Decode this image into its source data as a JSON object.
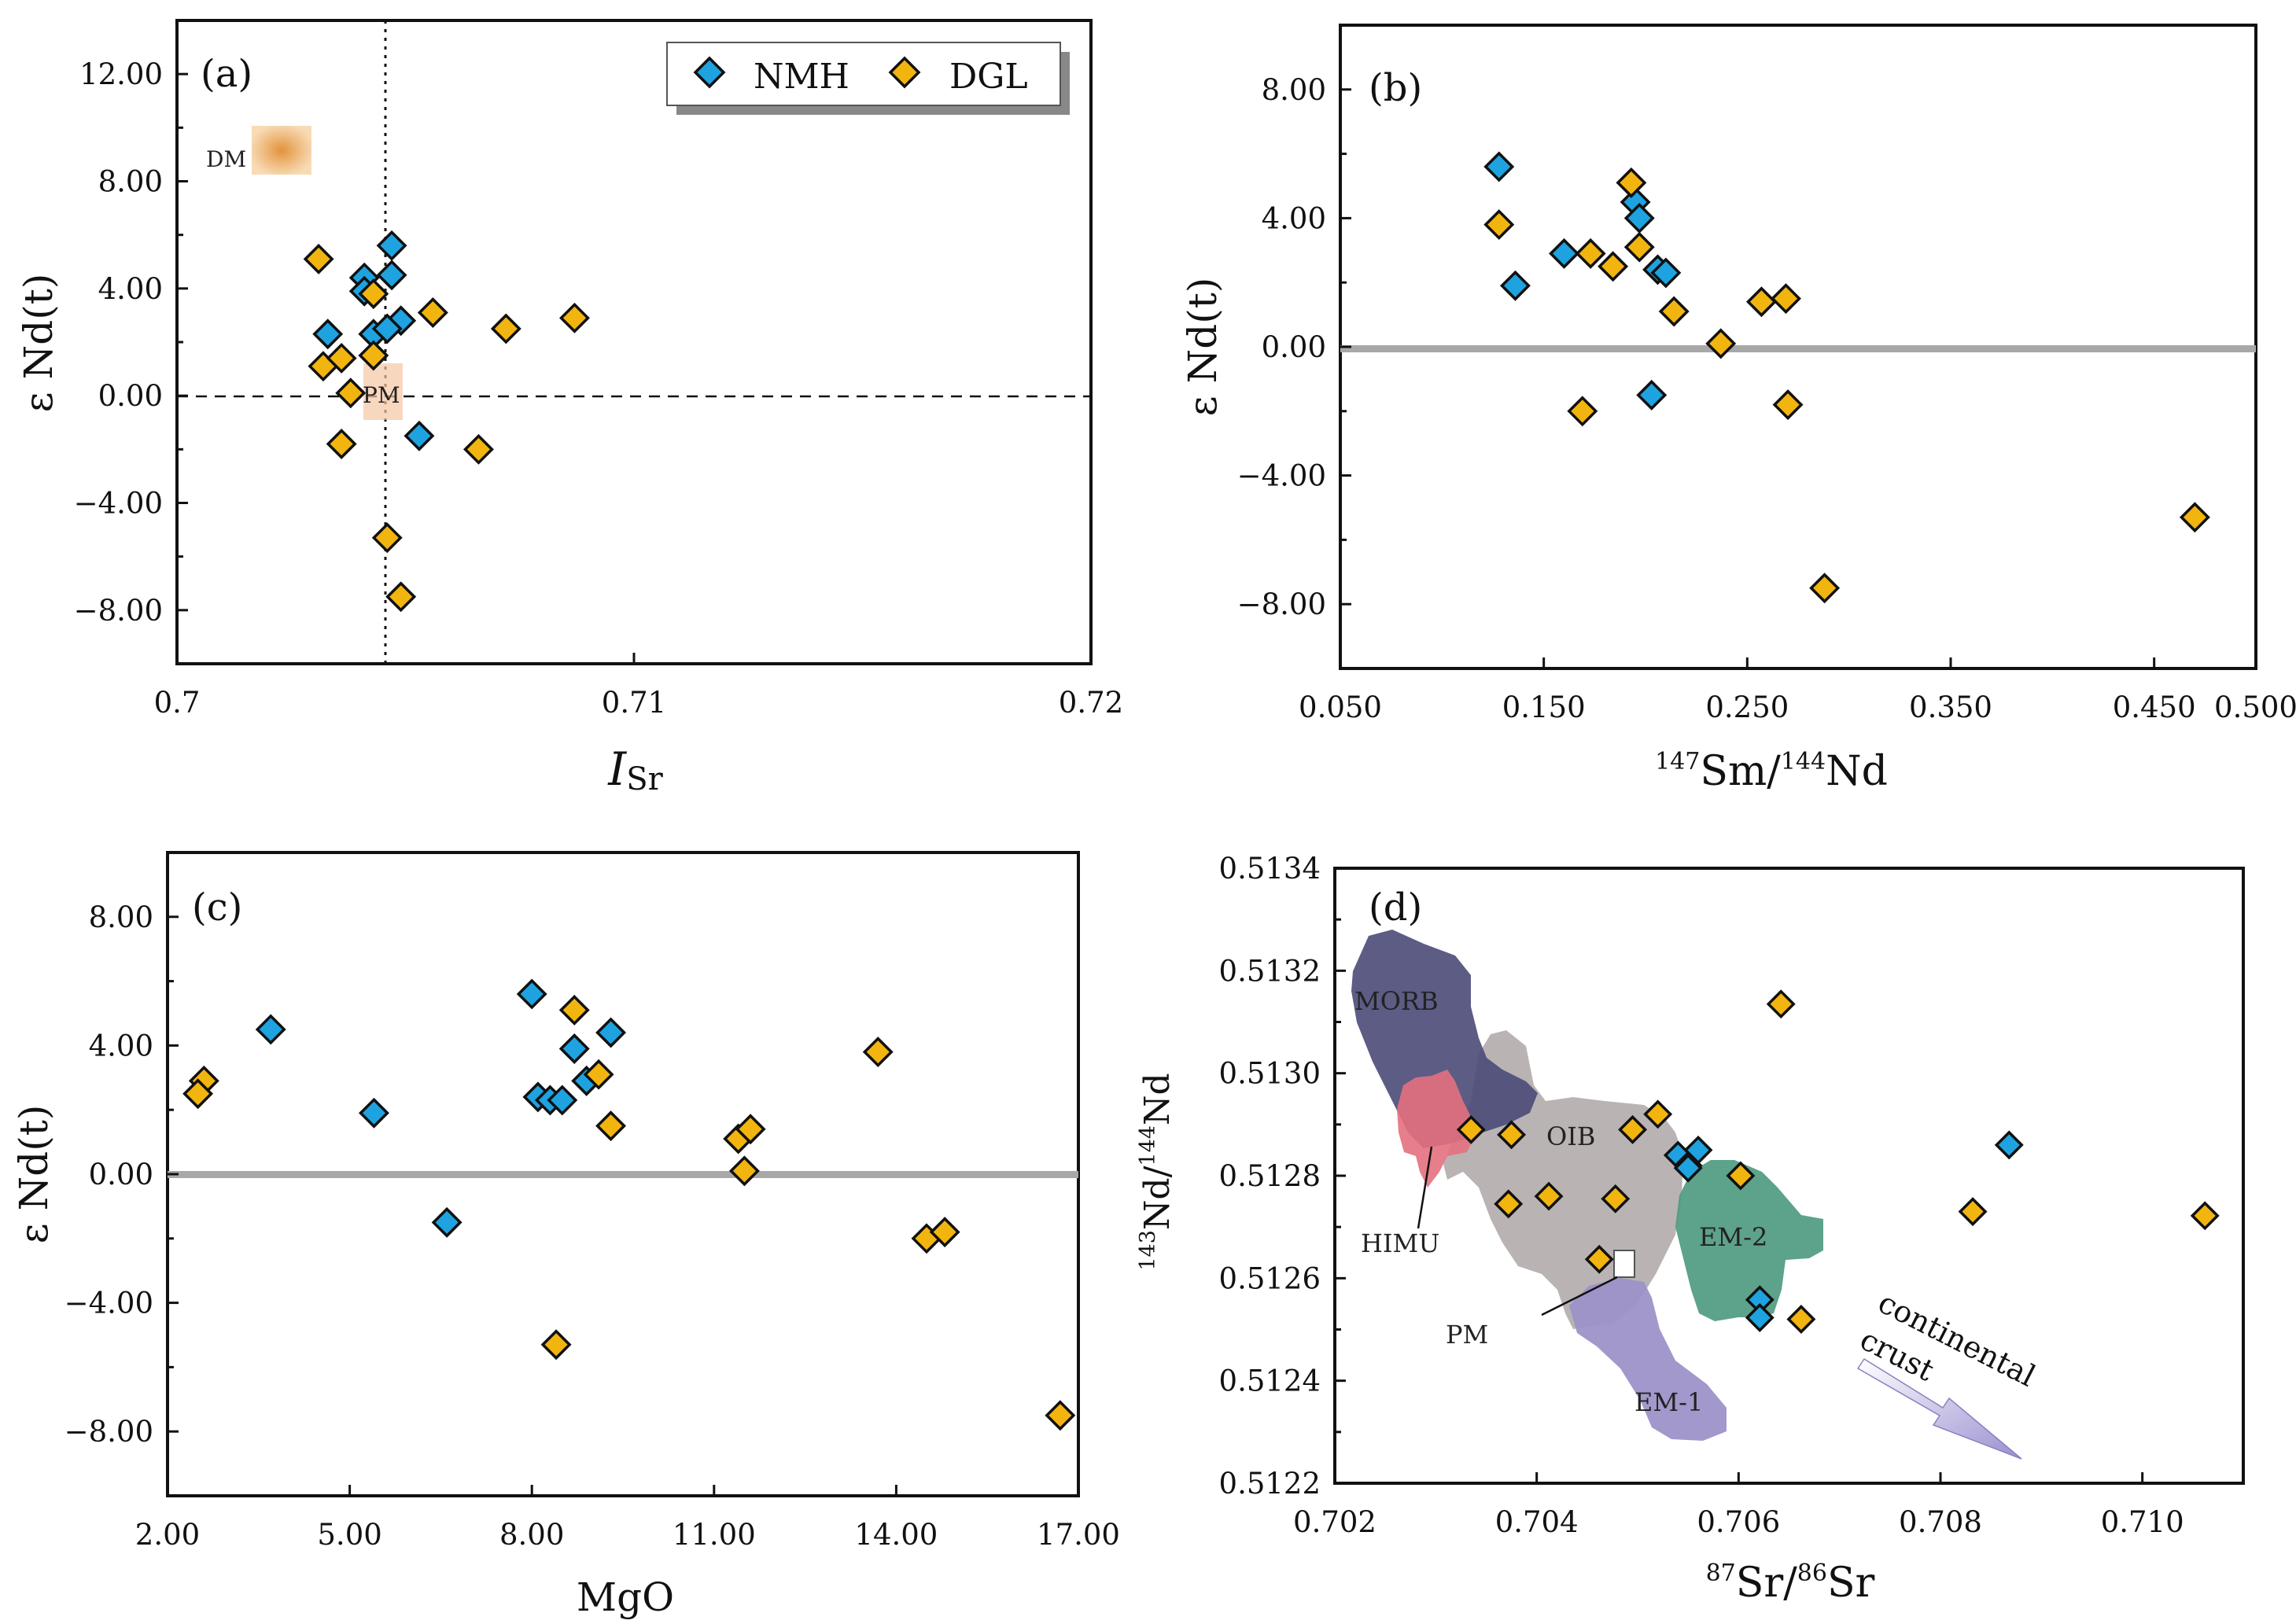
{
  "colors": {
    "NMH": "#1ea2e0",
    "DGL": "#f2b40f",
    "axis": "#111111",
    "zero_line": "#a8a8a8"
  },
  "legend": {
    "items": [
      {
        "name": "NMH",
        "color": "#1ea2e0"
      },
      {
        "name": "DGL",
        "color": "#f2b40f"
      }
    ]
  },
  "chart_data": [
    {
      "id": "a",
      "type": "scatter",
      "panel_label": "(a)",
      "xlabel_main": "I",
      "xlabel_sub": "Sr",
      "ylabel": "ε Nd(t)",
      "xlim": [
        0.7,
        0.72
      ],
      "ylim": [
        -10,
        14
      ],
      "x_ticks": [
        0.7,
        0.71,
        0.72
      ],
      "x_tick_labels": [
        "0.7",
        "0.71",
        "0.72"
      ],
      "y_ticks": [
        -8,
        -4,
        0,
        4,
        8,
        12
      ],
      "y_tick_labels": [
        "−8.00",
        "−4.00",
        "0.00",
        "4.00",
        "8.00",
        "12.00"
      ],
      "reference_lines": {
        "vertical_x": 0.7045,
        "horizontal_y": 0
      },
      "annotations": [
        {
          "label": "DM",
          "x": 0.7023,
          "y": 9.2
        },
        {
          "label": "PM",
          "x": 0.7045,
          "y": 0
        }
      ],
      "series": [
        {
          "name": "NMH",
          "points": [
            [
              0.7033,
              2.3
            ],
            [
              0.7041,
              4.4
            ],
            [
              0.7041,
              3.9
            ],
            [
              0.7047,
              5.6
            ],
            [
              0.7047,
              4.5
            ],
            [
              0.7043,
              2.3
            ],
            [
              0.7049,
              2.8
            ],
            [
              0.7046,
              2.5
            ],
            [
              0.7053,
              -1.5
            ]
          ]
        },
        {
          "name": "DGL",
          "points": [
            [
              0.7031,
              5.1
            ],
            [
              0.7043,
              3.8
            ],
            [
              0.7056,
              3.1
            ],
            [
              0.7072,
              2.5
            ],
            [
              0.7087,
              2.9
            ],
            [
              0.7032,
              1.1
            ],
            [
              0.7036,
              1.4
            ],
            [
              0.7043,
              1.5
            ],
            [
              0.7038,
              0.1
            ],
            [
              0.7036,
              -1.8
            ],
            [
              0.7066,
              -2.0
            ],
            [
              0.7046,
              -5.3
            ],
            [
              0.7049,
              -7.5
            ]
          ]
        }
      ]
    },
    {
      "id": "b",
      "type": "scatter",
      "panel_label": "(b)",
      "xlabel": "147Sm/144Nd",
      "ylabel": "ε Nd(t)",
      "xlim": [
        0.05,
        0.5
      ],
      "ylim": [
        -10,
        10
      ],
      "x_ticks": [
        0.05,
        0.15,
        0.25,
        0.35,
        0.45,
        0.5
      ],
      "x_tick_labels": [
        "0.050",
        "0.150",
        "0.250",
        "0.350",
        "0.450",
        "0.500"
      ],
      "y_ticks": [
        -8,
        -4,
        0,
        4,
        8
      ],
      "y_tick_labels": [
        "−8.00",
        "−4.00",
        "0.00",
        "4.00",
        "8.00"
      ],
      "zero_line": 0,
      "series": [
        {
          "name": "NMH",
          "points": [
            [
              0.128,
              5.6
            ],
            [
              0.195,
              4.5
            ],
            [
              0.197,
              4.0
            ],
            [
              0.16,
              2.9
            ],
            [
              0.136,
              1.9
            ],
            [
              0.206,
              2.4
            ],
            [
              0.21,
              2.3
            ],
            [
              0.203,
              -1.5
            ]
          ]
        },
        {
          "name": "DGL",
          "points": [
            [
              0.193,
              5.1
            ],
            [
              0.128,
              3.8
            ],
            [
              0.197,
              3.1
            ],
            [
              0.173,
              2.9
            ],
            [
              0.184,
              2.5
            ],
            [
              0.214,
              1.1
            ],
            [
              0.257,
              1.4
            ],
            [
              0.269,
              1.5
            ],
            [
              0.237,
              0.1
            ],
            [
              0.169,
              -2.0
            ],
            [
              0.27,
              -1.8
            ],
            [
              0.288,
              -7.5
            ],
            [
              0.47,
              -5.3
            ]
          ]
        }
      ]
    },
    {
      "id": "c",
      "type": "scatter",
      "panel_label": "(c)",
      "xlabel": "MgO",
      "ylabel": "ε Nd(t)",
      "xlim": [
        2,
        17
      ],
      "ylim": [
        -10,
        10
      ],
      "x_ticks": [
        2,
        5,
        8,
        11,
        14,
        17
      ],
      "x_tick_labels": [
        "2.00",
        "5.00",
        "8.00",
        "11.00",
        "14.00",
        "17.00"
      ],
      "y_ticks": [
        -8,
        -4,
        0,
        4,
        8
      ],
      "y_tick_labels": [
        "−8.00",
        "−4.00",
        "0.00",
        "4.00",
        "8.00"
      ],
      "zero_line": 0,
      "series": [
        {
          "name": "NMH",
          "points": [
            [
              8.0,
              5.6
            ],
            [
              3.7,
              4.5
            ],
            [
              9.3,
              4.4
            ],
            [
              8.7,
              3.9
            ],
            [
              8.9,
              2.9
            ],
            [
              8.1,
              2.4
            ],
            [
              8.3,
              2.3
            ],
            [
              8.5,
              2.3
            ],
            [
              5.4,
              1.9
            ],
            [
              6.6,
              -1.5
            ]
          ]
        },
        {
          "name": "DGL",
          "points": [
            [
              8.7,
              5.1
            ],
            [
              13.7,
              3.8
            ],
            [
              2.6,
              2.9
            ],
            [
              9.1,
              3.1
            ],
            [
              2.5,
              2.5
            ],
            [
              9.3,
              1.5
            ],
            [
              11.4,
              1.1
            ],
            [
              11.6,
              1.4
            ],
            [
              11.5,
              0.1
            ],
            [
              14.5,
              -2.0
            ],
            [
              14.8,
              -1.8
            ],
            [
              8.4,
              -5.3
            ],
            [
              16.7,
              -7.5
            ]
          ]
        }
      ]
    },
    {
      "id": "d",
      "type": "scatter",
      "panel_label": "(d)",
      "xlabel": "87Sr/86Sr",
      "ylabel": "143Nd/144Nd",
      "xlim": [
        0.702,
        0.711
      ],
      "ylim": [
        0.5122,
        0.5134
      ],
      "x_ticks": [
        0.702,
        0.704,
        0.706,
        0.708,
        0.71
      ],
      "x_tick_labels": [
        "0.702",
        "0.704",
        "0.706",
        "0.708",
        "0.710"
      ],
      "y_ticks": [
        0.5122,
        0.5124,
        0.5126,
        0.5128,
        0.513,
        0.5132,
        0.5134
      ],
      "y_tick_labels": [
        "0.5122",
        "0.5124",
        "0.5126",
        "0.5128",
        "0.5130",
        "0.5132",
        "0.5134"
      ],
      "fields": [
        {
          "name": "MORB",
          "label": "MORB",
          "color": "#4a4a78"
        },
        {
          "name": "OIB",
          "label": "OIB",
          "color": "#b3aeac"
        },
        {
          "name": "HIMU",
          "label": "HIMU",
          "color": "#e4707e"
        },
        {
          "name": "EM-1",
          "label": "EM-1",
          "color": "#9d92c8"
        },
        {
          "name": "EM-2",
          "label": "EM-2",
          "color": "#4f9a80"
        },
        {
          "name": "PM",
          "label": "PM"
        }
      ],
      "arrow_label_1": "continental",
      "arrow_label_2": "crust",
      "series": [
        {
          "name": "NMH",
          "points": [
            [
              0.7054,
              0.51284
            ],
            [
              0.7055,
              0.51282
            ],
            [
              0.7056,
              0.51285
            ],
            [
              0.7055,
              0.512815
            ],
            [
              0.70621,
              0.512558
            ],
            [
              0.70621,
              0.512523
            ],
            [
              0.70868,
              0.51286
            ]
          ]
        },
        {
          "name": "DGL",
          "points": [
            [
              0.70335,
              0.51289
            ],
            [
              0.70375,
              0.51288
            ],
            [
              0.7052,
              0.51292
            ],
            [
              0.70495,
              0.51289
            ],
            [
              0.70372,
              0.512745
            ],
            [
              0.70412,
              0.51276
            ],
            [
              0.70478,
              0.512755
            ],
            [
              0.70462,
              0.512637
            ],
            [
              0.70602,
              0.5128
            ],
            [
              0.70642,
              0.513135
            ],
            [
              0.70662,
              0.51252
            ],
            [
              0.70832,
              0.51273
            ],
            [
              0.71062,
              0.512722
            ]
          ]
        }
      ]
    }
  ]
}
